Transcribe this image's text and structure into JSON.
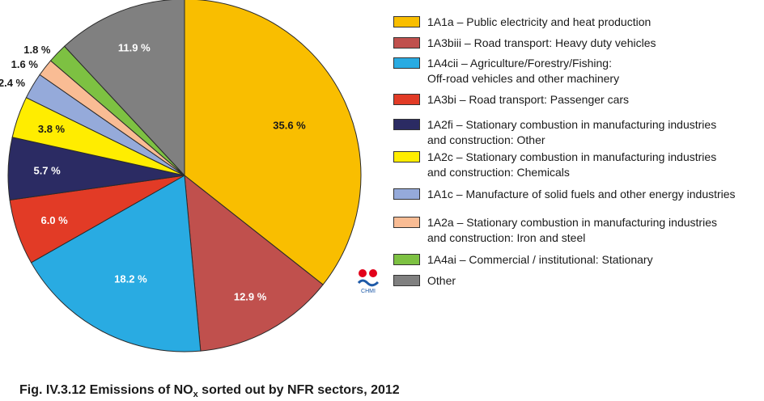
{
  "chart_data": {
    "type": "pie",
    "title": "Fig. IV.3.12  Emissions of NOx sorted out by NFR sectors, 2012",
    "start": "12 o'clock",
    "direction": "clockwise",
    "slices": [
      {
        "label": "1A1a – Public electricity and heat production",
        "lines": [
          "1A1a – Public electricity and heat production"
        ],
        "value": 35.6,
        "value_label": "35.6 %",
        "color": "#F9BE00"
      },
      {
        "label": "1A3biii – Road transport: Heavy duty vehicles",
        "lines": [
          "1A3biii – Road transport: Heavy duty vehicles"
        ],
        "value": 12.9,
        "value_label": "12.9 %",
        "color": "#C0504D"
      },
      {
        "label": "1A4cii – Agriculture/Forestry/Fishing: Off-road vehicles and other machinery",
        "lines": [
          "1A4cii – Agriculture/Forestry/Fishing:",
          "Off-road vehicles and other machinery"
        ],
        "value": 18.2,
        "value_label": "18.2 %",
        "color": "#29ABE2"
      },
      {
        "label": "1A3bi – Road transport: Passenger cars",
        "lines": [
          "1A3bi – Road transport: Passenger cars"
        ],
        "value": 6.0,
        "value_label": "6.0 %",
        "color": "#E23B26"
      },
      {
        "label": "1A2fi – Stationary combustion in manufacturing industries and construction: Other",
        "lines": [
          "1A2fi – Stationary combustion in manufacturing industries",
          "and construction: Other"
        ],
        "value": 5.7,
        "value_label": "5.7 %",
        "color": "#2B2B63"
      },
      {
        "label": "1A2c – Stationary combustion in manufacturing industries and construction: Chemicals",
        "lines": [
          "1A2c – Stationary combustion in manufacturing industries",
          "and construction: Chemicals"
        ],
        "value": 3.8,
        "value_label": "3.8 %",
        "color": "#FFED00"
      },
      {
        "label": "1A1c – Manufacture of solid fuels and other energy industries",
        "lines": [
          "1A1c – Manufacture of solid fuels and other energy industries"
        ],
        "value": 2.4,
        "value_label": "2.4 %",
        "color": "#95AADA"
      },
      {
        "label": "1A2a – Stationary combustion in manufacturing industries and construction: Iron and steel",
        "lines": [
          "1A2a – Stationary combustion in manufacturing industries",
          "and construction: Iron and steel"
        ],
        "value": 1.6,
        "value_label": "1.6 %",
        "color": "#F9BC94"
      },
      {
        "label": "1A4ai – Commercial / institutional: Stationary",
        "lines": [
          "1A4ai – Commercial / institutional: Stationary"
        ],
        "value": 1.8,
        "value_label": "1.8 %",
        "color": "#7DC142"
      },
      {
        "label": "Other",
        "lines": [
          "Other"
        ],
        "value": 11.9,
        "value_label": "11.9 %",
        "color": "#808080"
      }
    ],
    "legend_placement": "right"
  },
  "caption": {
    "prefix": "Fig. IV.3.12  Emissions of NO",
    "subscript": "x",
    "suffix": " sorted out by NFR sectors, 2012"
  },
  "logo": {
    "text": "CHMI",
    "colors": {
      "red": "#E2001A",
      "blue": "#1E5AA8"
    }
  }
}
